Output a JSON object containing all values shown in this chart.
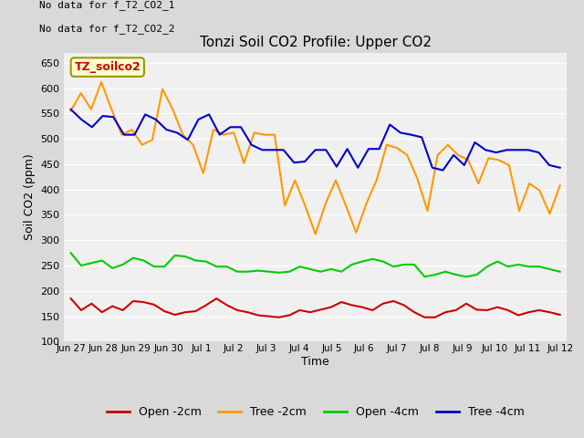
{
  "title": "Tonzi Soil CO2 Profile: Upper CO2",
  "ylabel": "Soil CO2 (ppm)",
  "xlabel": "Time",
  "ylim": [
    100,
    670
  ],
  "yticks": [
    100,
    150,
    200,
    250,
    300,
    350,
    400,
    450,
    500,
    550,
    600,
    650
  ],
  "no_data_text1": "No data for f_T2_CO2_1",
  "no_data_text2": "No data for f_T2_CO2_2",
  "legend_label_text": "TZ_soilco2",
  "fig_bg_color": "#d9d9d9",
  "plot_bg_color": "#f0f0f0",
  "legend_entries": [
    "Open -2cm",
    "Tree -2cm",
    "Open -4cm",
    "Tree -4cm"
  ],
  "legend_colors": [
    "#cc0000",
    "#ff9900",
    "#00cc00",
    "#0000cc"
  ],
  "x_tick_labels": [
    "Jun 27",
    "Jun 28",
    "Jun 29",
    "Jun 30",
    "Jul 1",
    "Jul 2",
    "Jul 3",
    "Jul 4",
    "Jul 5",
    "Jul 6",
    "Jul 7",
    "Jul 8",
    "Jul 9",
    "Jul 10",
    "Jul 11",
    "Jul 12"
  ],
  "open_2cm": [
    185,
    162,
    175,
    158,
    170,
    162,
    180,
    178,
    173,
    160,
    153,
    158,
    160,
    172,
    185,
    172,
    162,
    158,
    152,
    150,
    148,
    152,
    162,
    158,
    163,
    168,
    178,
    172,
    168,
    162,
    175,
    180,
    172,
    158,
    148,
    148,
    158,
    162,
    175,
    163,
    162,
    168,
    162,
    152,
    158,
    162,
    158,
    153
  ],
  "tree_2cm": [
    555,
    590,
    558,
    612,
    558,
    508,
    518,
    488,
    498,
    598,
    558,
    508,
    488,
    432,
    518,
    508,
    512,
    452,
    512,
    508,
    508,
    368,
    418,
    368,
    312,
    372,
    418,
    368,
    315,
    372,
    418,
    488,
    482,
    468,
    422,
    358,
    468,
    488,
    468,
    458,
    412,
    462,
    458,
    448,
    358,
    412,
    398,
    352,
    408
  ],
  "open_4cm": [
    275,
    250,
    255,
    260,
    245,
    252,
    265,
    260,
    248,
    248,
    270,
    268,
    260,
    258,
    248,
    248,
    238,
    238,
    240,
    238,
    236,
    238,
    248,
    243,
    238,
    243,
    238,
    252,
    258,
    263,
    258,
    248,
    252,
    252,
    228,
    232,
    238,
    232,
    228,
    232,
    248,
    258,
    248,
    252,
    248,
    248,
    243,
    238
  ],
  "tree_4cm": [
    558,
    538,
    523,
    545,
    543,
    508,
    508,
    548,
    538,
    518,
    512,
    498,
    538,
    548,
    508,
    523,
    523,
    488,
    478,
    478,
    478,
    453,
    455,
    478,
    478,
    445,
    480,
    443,
    480,
    480,
    528,
    512,
    508,
    503,
    443,
    438,
    468,
    448,
    493,
    478,
    473,
    478,
    478,
    478,
    473,
    448,
    443
  ]
}
